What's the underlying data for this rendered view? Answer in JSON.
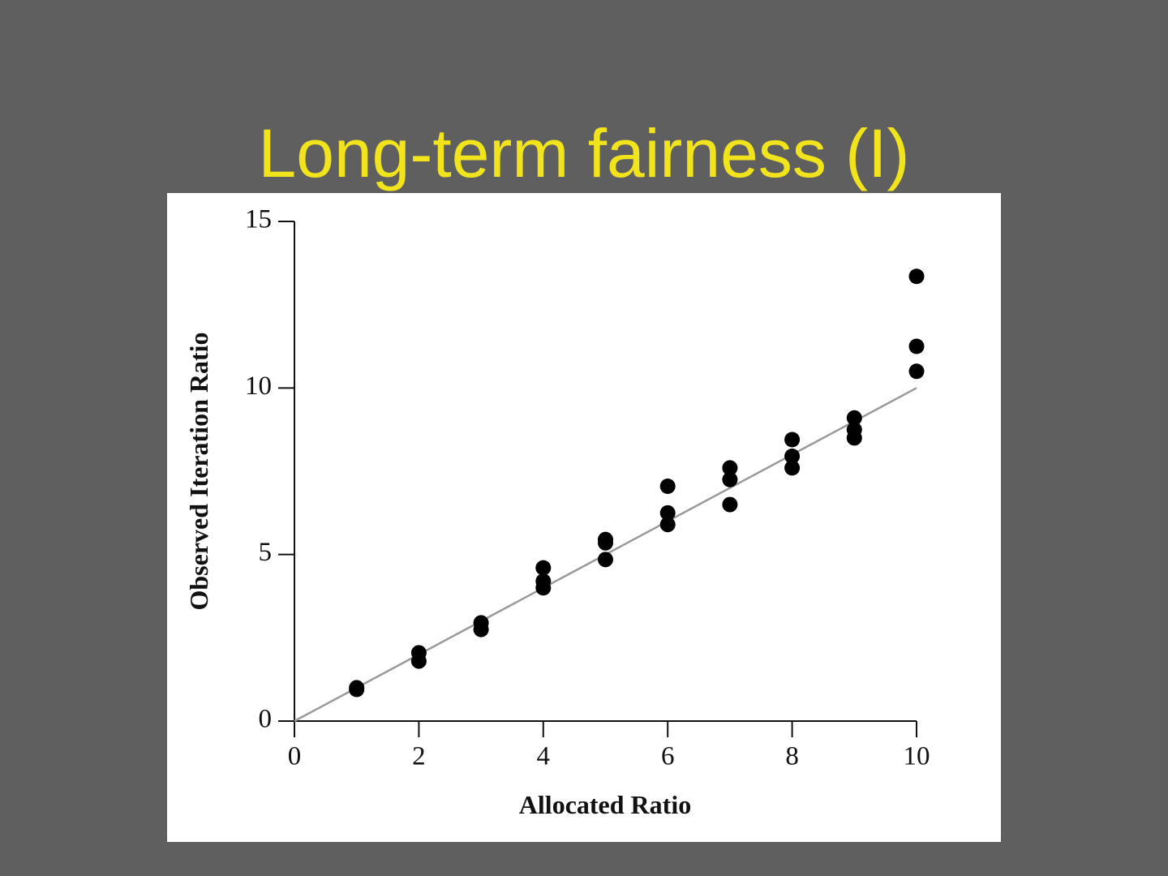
{
  "chart_data": {
    "type": "scatter",
    "title": "Long-term fairness (I)",
    "x_label": "Allocated Ratio",
    "y_label": "Observed Iteration Ratio",
    "xlim": [
      0,
      10
    ],
    "ylim": [
      0,
      15
    ],
    "xticks": [
      0,
      2,
      4,
      6,
      8,
      10
    ],
    "yticks": [
      0,
      5,
      10,
      15
    ],
    "series": [
      {
        "type": "scatter",
        "color": "#000000",
        "x": [
          1,
          1,
          2,
          2,
          3,
          3,
          4,
          4,
          4,
          5,
          5,
          5,
          6,
          6,
          6,
          7,
          7,
          7,
          8,
          8,
          8,
          9,
          9,
          9,
          10,
          10,
          10
        ],
        "values": [
          1.0,
          0.95,
          2.05,
          1.8,
          2.95,
          2.75,
          4.6,
          4.2,
          4.0,
          5.45,
          5.35,
          4.85,
          7.05,
          6.25,
          5.9,
          7.6,
          7.25,
          6.5,
          8.45,
          7.95,
          7.6,
          9.1,
          8.75,
          8.5,
          13.35,
          11.25,
          10.5
        ]
      },
      {
        "type": "line",
        "color": "#999999",
        "x": [
          0,
          10
        ],
        "values": [
          0,
          10
        ]
      }
    ]
  }
}
